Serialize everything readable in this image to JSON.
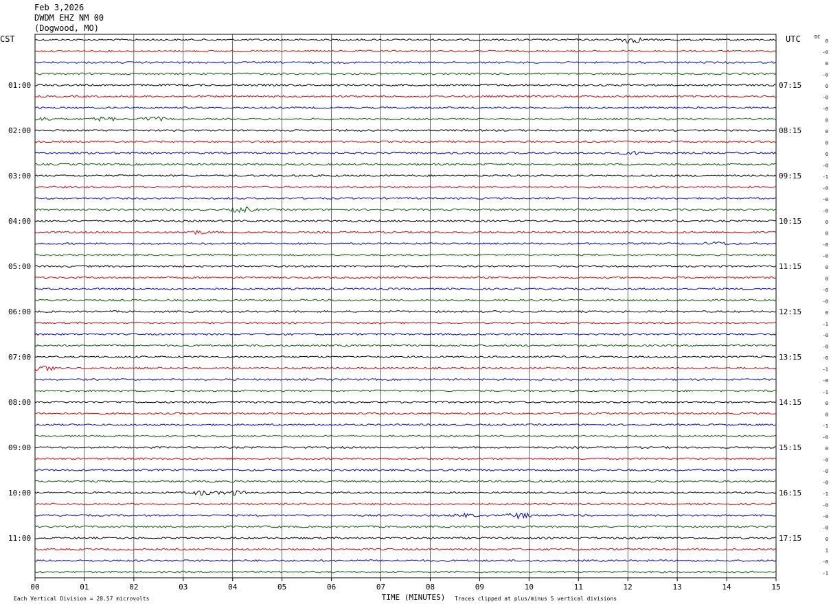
{
  "header": {
    "date": "Feb 3,2026",
    "station": "DWDM EHZ NM 00",
    "location": "(Dogwood, MO)"
  },
  "left_timezone": "CST",
  "right_timezone": "UTC",
  "dc_label": "DC",
  "footer": {
    "division_note": "Each Vertical Division =   28.57 microvolts",
    "xlabel": "TIME (MINUTES)",
    "clip_note": "Traces clipped at plus/minus 5 vertical divisions"
  },
  "colors": {
    "trace_cycle": [
      "#000000",
      "#e00000",
      "#0000d0",
      "#006000"
    ],
    "grid": "#000000"
  },
  "chart_data": {
    "type": "line",
    "title": "",
    "xlabel": "TIME (MINUTES)",
    "xlim": [
      0,
      15
    ],
    "x_ticks": [
      "00",
      "01",
      "02",
      "03",
      "04",
      "05",
      "06",
      "07",
      "08",
      "09",
      "10",
      "11",
      "12",
      "13",
      "14",
      "15"
    ],
    "trace_count": 48,
    "trace_interval_minutes": 15,
    "left_hour_labels": [
      "01:00",
      "02:00",
      "03:00",
      "04:00",
      "05:00",
      "06:00",
      "07:00",
      "08:00",
      "09:00",
      "10:00",
      "11:00"
    ],
    "right_hour_labels": [
      "07:15",
      "08:15",
      "09:15",
      "10:15",
      "11:15",
      "12:15",
      "13:15",
      "14:15",
      "15:15",
      "16:15",
      "17:15"
    ],
    "dc_offsets": [
      "0",
      "-0",
      "0",
      "-0",
      "0",
      "-0",
      "-0",
      "0",
      "0",
      "0",
      "0",
      "-0",
      "-1",
      "-0",
      "-0",
      "-0",
      "0",
      "0",
      "-0",
      "-0",
      "0",
      "0",
      "-0",
      "-0",
      "0",
      "-1",
      "-0",
      "-0",
      "-0",
      "-1",
      "-0",
      "-1",
      "0",
      "0",
      "-1",
      "-0",
      "0",
      "-0",
      "-0",
      "-0",
      "-1",
      "-0",
      "-0",
      "-0",
      "0",
      "1",
      "-0",
      "-1"
    ],
    "events": [
      {
        "trace": 0,
        "minute": 12.05,
        "amplitude": 5
      },
      {
        "trace": 7,
        "minute": 1.4,
        "amplitude": 3
      },
      {
        "trace": 7,
        "minute": 2.4,
        "amplitude": 3
      },
      {
        "trace": 7,
        "minute": 0.2,
        "amplitude": 2
      },
      {
        "trace": 10,
        "minute": 12.1,
        "amplitude": 2
      },
      {
        "trace": 15,
        "minute": 4.2,
        "amplitude": 4
      },
      {
        "trace": 17,
        "minute": 3.3,
        "amplitude": 2
      },
      {
        "trace": 18,
        "minute": 13.8,
        "amplitude": 2
      },
      {
        "trace": 29,
        "minute": 0.15,
        "amplitude": 4
      },
      {
        "trace": 40,
        "minute": 3.4,
        "amplitude": 3
      },
      {
        "trace": 40,
        "minute": 4.0,
        "amplitude": 3
      },
      {
        "trace": 42,
        "minute": 9.8,
        "amplitude": 4
      },
      {
        "trace": 42,
        "minute": 8.7,
        "amplitude": 2
      }
    ]
  }
}
